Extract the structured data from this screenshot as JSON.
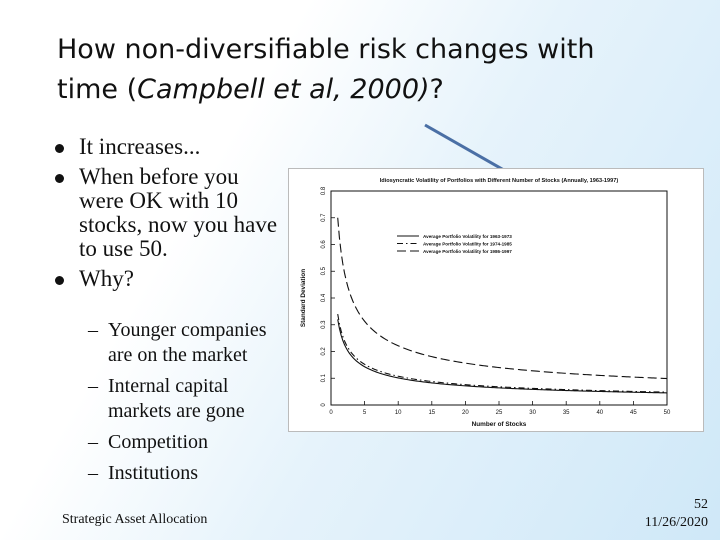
{
  "slide": {
    "title_main": "How non-diversifiable risk changes with time (",
    "title_italic": "Campbell et al, 2000)",
    "title_end": "?",
    "bullets": [
      "It increases...",
      "When before you were OK with 10 stocks, now you have to use 50.",
      "Why?"
    ],
    "subbullets": [
      "Younger companies are on the market",
      "Internal capital markets are gone",
      "Competition",
      "Institutions"
    ],
    "dash": "–",
    "footer_left": "Strategic Asset Allocation",
    "page_number": "52",
    "date": "11/26/2020"
  },
  "chart_data": {
    "type": "line",
    "title": "Idiosyncratic Volatility of Portfolios with Different Number of Stocks (Annually, 1963-1997)",
    "xlabel": "Number of Stocks",
    "ylabel": "Standard Deviation",
    "xlim": [
      0,
      50
    ],
    "ylim": [
      0,
      0.8
    ],
    "xticks": [
      0,
      5,
      10,
      15,
      20,
      25,
      30,
      35,
      40,
      45,
      50
    ],
    "yticks": [
      0,
      0.1,
      0.2,
      0.3,
      0.4,
      0.5,
      0.6,
      0.7,
      0.8
    ],
    "legend_position": "upper-middle",
    "series": [
      {
        "name": "Average Portfolio Volatility for 1963-1973",
        "style": "solid",
        "sigma1": 0.32
      },
      {
        "name": "Average Portfolio Volatility for 1974-1985",
        "style": "dash-dot",
        "sigma1": 0.34
      },
      {
        "name": "Average Portfolio Volatility for 1986-1997",
        "style": "dashed",
        "sigma1": 0.7
      }
    ],
    "formula_note": ""
  }
}
